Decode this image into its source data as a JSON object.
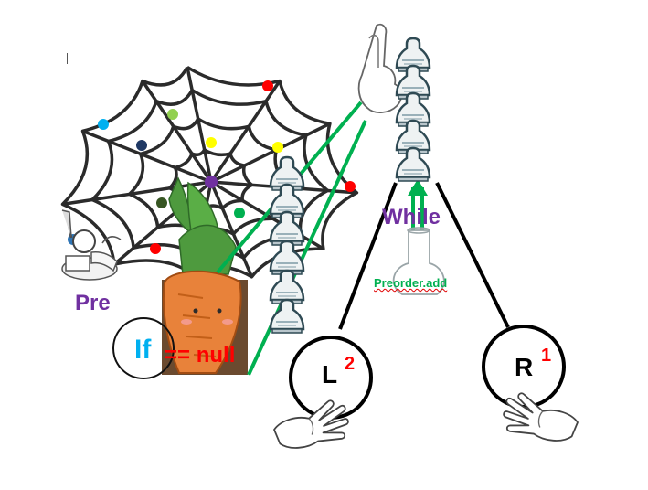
{
  "labels": {
    "pre": "Pre",
    "while": "While",
    "preorder_add": "Preorder.add",
    "if": "If",
    "null_check": "== null",
    "left_node": "L",
    "left_badge": "2",
    "right_node": "R",
    "right_badge": "1"
  },
  "colors": {
    "purple_label": "#7030a0",
    "green": "#00b050",
    "if_blue": "#00b0f0",
    "red": "#ff0000",
    "web_stroke": "#2b2b2b",
    "web_center": "#7030a0",
    "carrot": "#e8823a",
    "leaves": "#3f8f3a"
  },
  "web_dots": [
    {
      "color": "#ff0000"
    },
    {
      "color": "#00b0f0"
    },
    {
      "color": "#92d050"
    },
    {
      "color": "#1f3864"
    },
    {
      "color": "#ffff00"
    },
    {
      "color": "#ffff00"
    },
    {
      "color": "#ff0000"
    },
    {
      "color": "#375623"
    },
    {
      "color": "#00b050"
    },
    {
      "color": "#2e75b6"
    },
    {
      "color": "#ff0000"
    }
  ],
  "icons": {
    "web": "spider-web-icon",
    "writer": "writer-figure-icon",
    "carrot": "carrot-icon",
    "stack": "stack-figure-icon",
    "flask": "flask-icon",
    "hand": "open-hand-icon",
    "finger": "pointing-hand-icon"
  }
}
